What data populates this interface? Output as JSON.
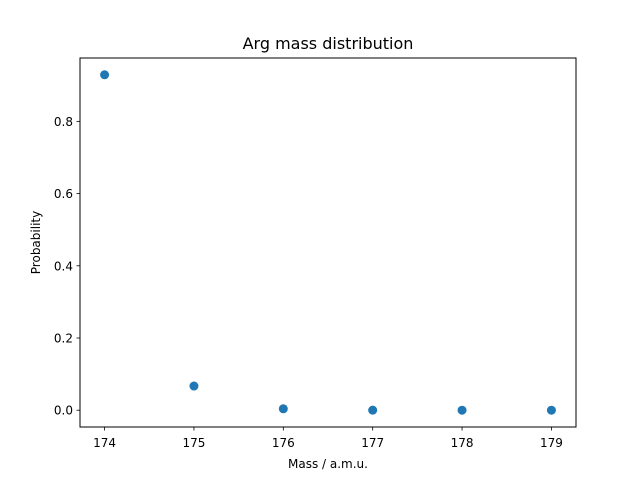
{
  "chart_data": {
    "type": "scatter",
    "title": "Arg mass distribution",
    "xlabel": "Mass / a.m.u.",
    "ylabel": "Probability",
    "x": [
      174,
      175,
      176,
      177,
      178,
      179
    ],
    "y": [
      0.929,
      0.067,
      0.004,
      0.0002,
      0.0,
      0.0
    ],
    "xlim": [
      173.725,
      179.275
    ],
    "ylim": [
      -0.0465,
      0.9755
    ],
    "xticks": [
      174,
      175,
      176,
      177,
      178,
      179
    ],
    "xtick_labels": [
      "174",
      "175",
      "176",
      "177",
      "178",
      "179"
    ],
    "yticks": [
      0.0,
      0.2,
      0.4,
      0.6,
      0.8
    ],
    "ytick_labels": [
      "0.0",
      "0.2",
      "0.4",
      "0.6",
      "0.8"
    ],
    "grid": false,
    "marker_color": "#1f77b4"
  }
}
